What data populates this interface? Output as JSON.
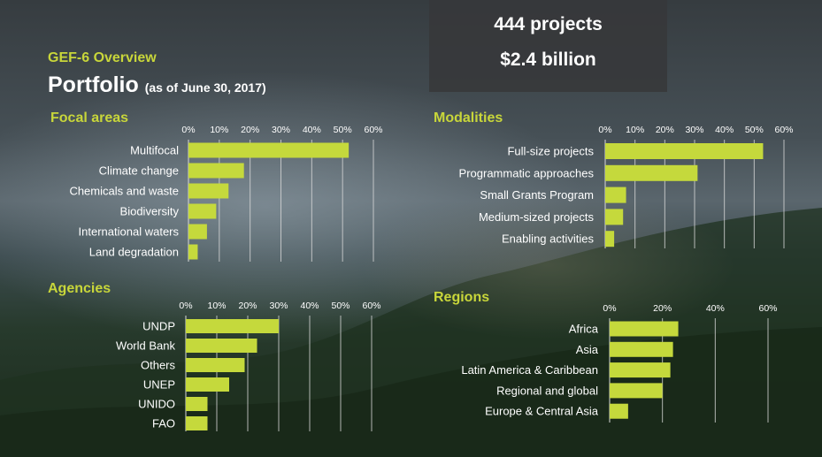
{
  "header": {
    "overview_label": "GEF-6 Overview",
    "title": "Portfolio",
    "title_sub": "(as of June 30, 2017)"
  },
  "summary": {
    "projects": "444 projects",
    "amount": "$2.4 billion"
  },
  "colors": {
    "accent": "#c8d63a",
    "bar": "#c5d93c",
    "box": "#37383a",
    "text": "#ffffff"
  },
  "chart_data": [
    {
      "type": "bar",
      "orientation": "horizontal",
      "title": "Focal areas",
      "categories": [
        "Multifocal",
        "Climate change",
        "Chemicals and waste",
        "Biodiversity",
        "International waters",
        "Land degradation"
      ],
      "values": [
        52,
        18,
        13,
        9,
        6,
        3
      ],
      "ticks": [
        "0%",
        "10%",
        "20%",
        "30%",
        "40%",
        "50%",
        "60%"
      ],
      "xlim": [
        0,
        60
      ],
      "grid": true
    },
    {
      "type": "bar",
      "orientation": "horizontal",
      "title": "Modalities",
      "categories": [
        "Full-size projects",
        "Programmatic approaches",
        "Small Grants Program",
        "Medium-sized projects",
        "Enabling activities"
      ],
      "values": [
        53,
        31,
        7,
        6,
        3
      ],
      "ticks": [
        "0%",
        "10%",
        "20%",
        "30%",
        "40%",
        "50%",
        "60%"
      ],
      "xlim": [
        0,
        60
      ],
      "grid": true
    },
    {
      "type": "bar",
      "orientation": "horizontal",
      "title": "Agencies",
      "categories": [
        "UNDP",
        "World Bank",
        "Others",
        "UNEP",
        "UNIDO",
        "FAO"
      ],
      "values": [
        30,
        23,
        19,
        14,
        7,
        7
      ],
      "ticks": [
        "0%",
        "10%",
        "20%",
        "30%",
        "40%",
        "50%",
        "60%"
      ],
      "xlim": [
        0,
        60
      ],
      "grid": true
    },
    {
      "type": "bar",
      "orientation": "horizontal",
      "title": "Regions",
      "categories": [
        "Africa",
        "Asia",
        "Latin America & Caribbean",
        "Regional and global",
        "Europe & Central Asia"
      ],
      "values": [
        26,
        24,
        23,
        20,
        7
      ],
      "ticks": [
        "0%",
        "20%",
        "40%",
        "60%"
      ],
      "xlim": [
        0,
        60
      ],
      "grid": true
    }
  ]
}
